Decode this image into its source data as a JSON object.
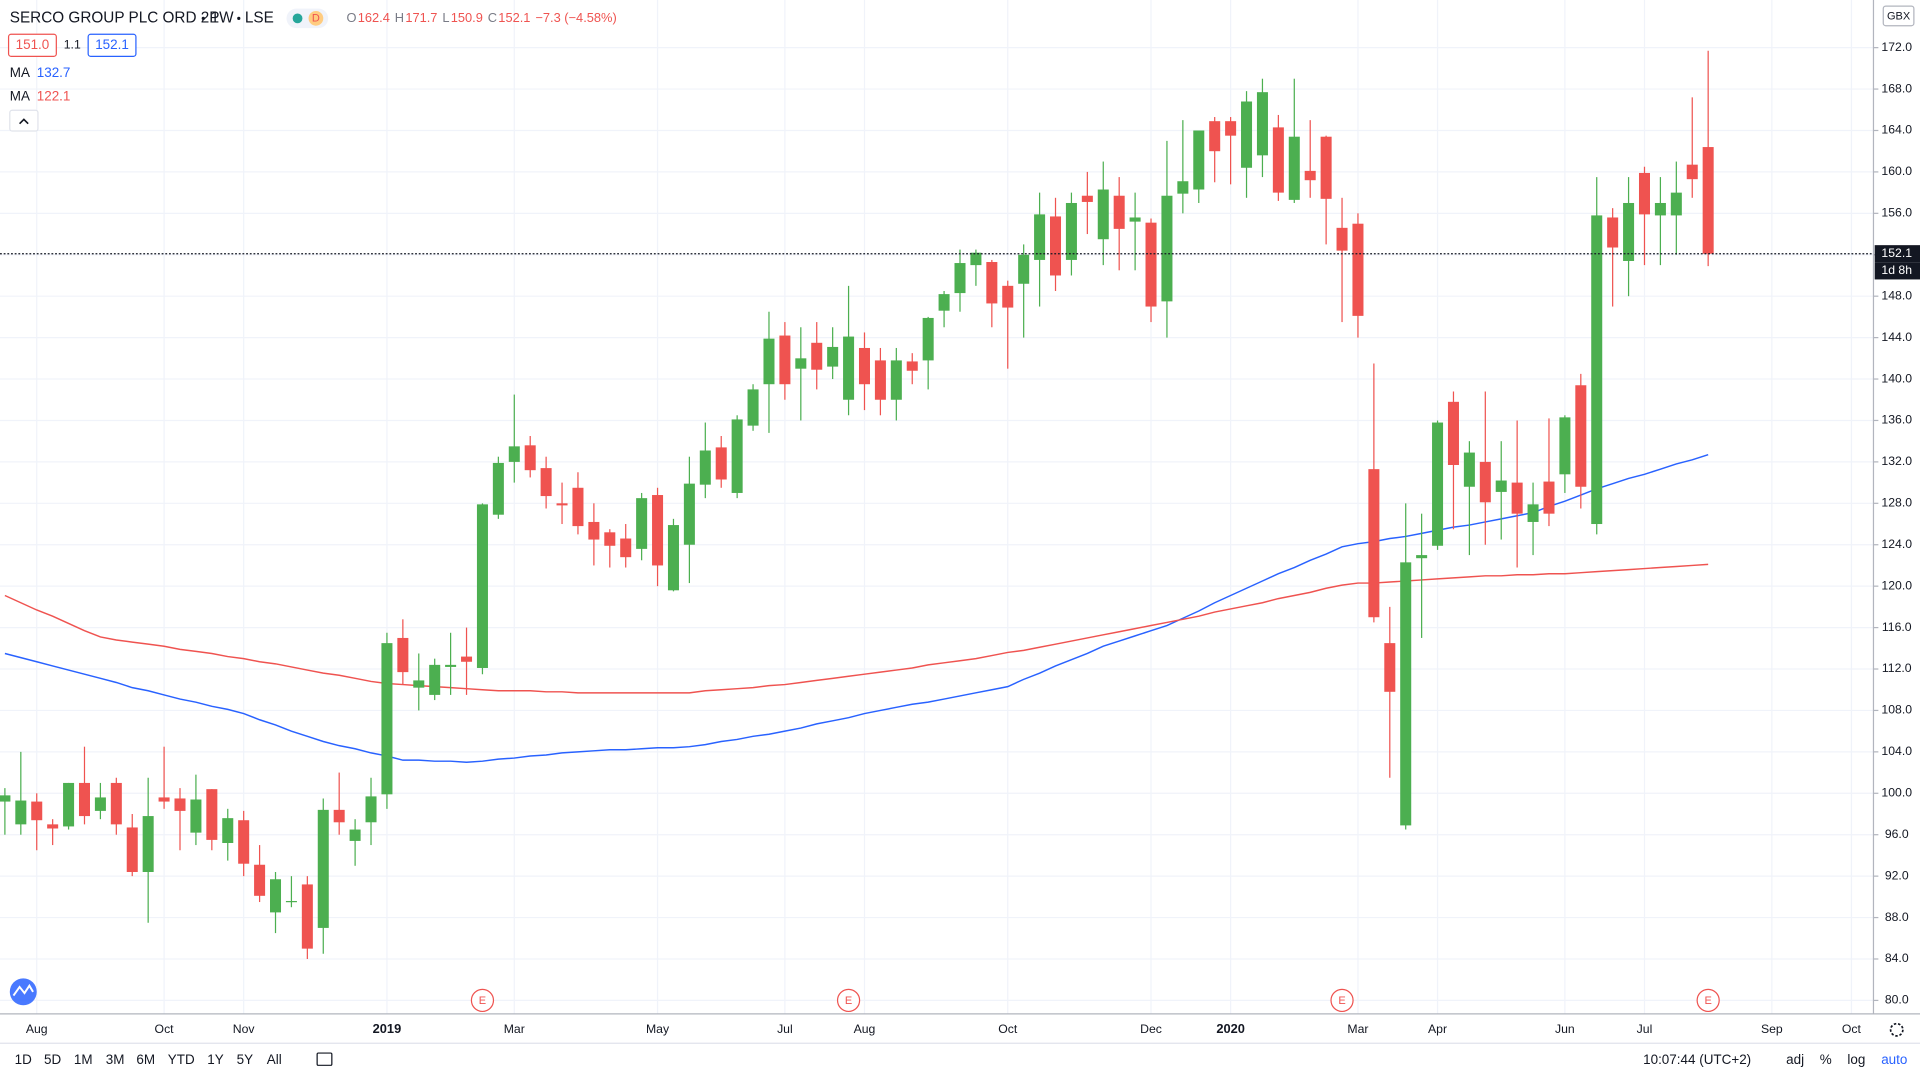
{
  "header": {
    "symbol": "SERCO GROUP PLC ORD 2P",
    "interval": "1W",
    "exchange": "LSE",
    "badge": "D",
    "ohlc": [
      {
        "label": "O",
        "value": "162.4"
      },
      {
        "label": "H",
        "value": "171.7"
      },
      {
        "label": "L",
        "value": "150.9"
      },
      {
        "label": "C",
        "value": "152.1"
      }
    ],
    "change": "−7.3 (−4.58%)",
    "bid": "151.0",
    "spread": "1.1",
    "ask": "152.1",
    "ma_values": [
      "132.7",
      "122.1"
    ]
  },
  "price_axis": {
    "currency": "GBX",
    "countdown": "1d 8h"
  },
  "toolbar": {
    "ranges": [
      "1D",
      "5D",
      "1M",
      "3M",
      "6M",
      "YTD",
      "1Y",
      "5Y",
      "All"
    ],
    "time": "10:07:44 (UTC+2)",
    "options": [
      "adj",
      "%",
      "log",
      "auto"
    ]
  },
  "chart_data": {
    "type": "candlestick",
    "up_color": "#4caf50",
    "down_color": "#ef5350",
    "grid": true,
    "categories": [
      null,
      null,
      "Aug",
      null,
      null,
      null,
      null,
      null,
      null,
      null,
      "Oct",
      null,
      null,
      null,
      null,
      "Nov",
      null,
      null,
      null,
      null,
      null,
      null,
      null,
      null,
      "2019",
      null,
      null,
      null,
      null,
      null,
      null,
      null,
      "Mar",
      null,
      null,
      null,
      null,
      null,
      null,
      null,
      null,
      "May",
      null,
      null,
      null,
      null,
      null,
      null,
      null,
      "Jul",
      null,
      null,
      null,
      null,
      "Aug",
      null,
      null,
      null,
      null,
      null,
      null,
      null,
      null,
      "Oct",
      null,
      null,
      null,
      null,
      null,
      null,
      null,
      null,
      "Dec",
      null,
      null,
      null,
      null,
      "2020",
      null,
      null,
      null,
      null,
      null,
      null,
      null,
      "Mar",
      null,
      null,
      null,
      null,
      "Apr",
      null,
      null,
      null,
      null,
      null,
      null,
      null,
      "Jun",
      null,
      null,
      null,
      null,
      "Jul",
      null,
      null,
      null,
      null,
      null,
      null,
      null,
      "Sep",
      null,
      null,
      null,
      null,
      "Oct",
      null
    ],
    "open": [
      99.2,
      97,
      99.2,
      97.0,
      96.8,
      101,
      98.3,
      101,
      96.7,
      92.4,
      99.6,
      99.5,
      96.2,
      100.4,
      95.2,
      97.4,
      93.1,
      88.5,
      89.5,
      91.2,
      87,
      98.4,
      95.4,
      97.2,
      99.9,
      115,
      110.2,
      109.5,
      112.2,
      113.2,
      112.1,
      126.9,
      132,
      133.6,
      131.4,
      128,
      129.5,
      126.2,
      125.2,
      124.6,
      123.6,
      128.8,
      119.6,
      124,
      129.8,
      133.4,
      129,
      135.5,
      139.5,
      144.2,
      141,
      143.5,
      141.2,
      138,
      143,
      141.8,
      138,
      141.7,
      141.8,
      146.6,
      148.3,
      151,
      151.3,
      149,
      149.2,
      151.5,
      155.7,
      151.5,
      157.7,
      153.5,
      157.7,
      155.2,
      155.1,
      147.5,
      157.9,
      158.3,
      164.9,
      164.9,
      160.4,
      161.6,
      164.3,
      157.3,
      160.1,
      163.4,
      154.6,
      155,
      131.3,
      114.5,
      96.9,
      122.7,
      123.9,
      137.8,
      129.6,
      132,
      129.1,
      130,
      126.2,
      130.1,
      130.8,
      139.4,
      126,
      155.6,
      151.4,
      159.9,
      155.8,
      155.8,
      160.7,
      162.4,
      null,
      null,
      null,
      null,
      null,
      null,
      null,
      null,
      null,
      null
    ],
    "high": [
      100.5,
      104,
      100,
      97.5,
      101,
      104.5,
      101,
      101.5,
      98,
      101.5,
      104.5,
      100.5,
      101.8,
      100.4,
      98.5,
      98.3,
      95,
      92.4,
      92,
      92,
      99.5,
      102,
      97.5,
      101.5,
      115.5,
      116.8,
      113.5,
      113,
      115.5,
      116,
      128,
      132.5,
      138.5,
      134.5,
      132.5,
      130,
      131,
      128,
      125.5,
      126,
      129,
      129.5,
      126.5,
      132.5,
      135.8,
      134.5,
      136.5,
      139.5,
      146.5,
      145.5,
      145,
      145.5,
      145,
      149,
      144.5,
      143,
      143,
      142.5,
      146,
      148.5,
      152.5,
      152.5,
      151.5,
      149.5,
      153,
      158,
      157.5,
      158,
      160,
      161,
      159.5,
      158,
      155.5,
      163,
      165,
      164,
      165.3,
      165.3,
      167.8,
      169,
      165.5,
      169,
      165,
      163.5,
      157.5,
      156,
      141.5,
      118,
      128,
      127,
      136,
      138.8,
      134,
      138.8,
      134,
      136,
      130,
      136.2,
      136.5,
      140.5,
      159.5,
      156.5,
      159.5,
      160.5,
      159.5,
      161,
      167.2,
      171.7,
      null,
      null,
      null,
      null,
      null,
      null,
      null,
      null,
      null,
      null
    ],
    "low": [
      96,
      96,
      94.5,
      95,
      96.5,
      97,
      97.5,
      96,
      92,
      87.5,
      98.5,
      94.5,
      95,
      94.5,
      93.5,
      92,
      89.5,
      86.5,
      89,
      84,
      84.5,
      96,
      93,
      95,
      98.5,
      110.5,
      108,
      109,
      109.5,
      109.5,
      111.5,
      126.5,
      130,
      130.5,
      127.5,
      126,
      125,
      122,
      121.8,
      121.8,
      122.5,
      120,
      119.5,
      120.3,
      128.5,
      129.5,
      128.5,
      135,
      134.8,
      138,
      136,
      139,
      140,
      136.5,
      137,
      136.5,
      136,
      139.5,
      139,
      145,
      146.5,
      149,
      145,
      141,
      144,
      147,
      148.5,
      150,
      154,
      151,
      150.5,
      150.5,
      145.5,
      144,
      156,
      157,
      159,
      158.8,
      157.5,
      159.5,
      157.2,
      157,
      157.5,
      153,
      145.5,
      144,
      116.5,
      101.5,
      96.5,
      115,
      123.5,
      125.5,
      123,
      124,
      124.5,
      121.8,
      123,
      125.8,
      129,
      127.5,
      125,
      147,
      148,
      151,
      151,
      152,
      157.5,
      150.9,
      null,
      null,
      null,
      null,
      null,
      null,
      null,
      null,
      null,
      null
    ],
    "close": [
      99.8,
      99.3,
      97.4,
      96.6,
      101,
      97.8,
      99.6,
      97,
      92.4,
      97.8,
      99.2,
      98.3,
      99.4,
      95.5,
      97.6,
      93.2,
      90.1,
      91.7,
      89.6,
      85,
      98.4,
      97.2,
      96.5,
      99.7,
      114.5,
      111.7,
      110.9,
      112.4,
      112.4,
      112.7,
      127.9,
      131.9,
      133.5,
      131.2,
      128.7,
      127.8,
      125.8,
      124.5,
      123.9,
      122.8,
      128.5,
      122,
      125.9,
      129.9,
      133.1,
      130.3,
      136.1,
      139,
      143.9,
      139.5,
      142,
      140.9,
      143.1,
      144.1,
      139.5,
      138,
      141.8,
      140.8,
      145.9,
      148.2,
      151.2,
      152.2,
      147.3,
      146.9,
      152,
      155.9,
      150,
      157,
      157.1,
      158.3,
      154.5,
      155.6,
      147,
      157.7,
      159.1,
      164,
      162,
      163.5,
      166.8,
      167.7,
      158,
      163.4,
      159.2,
      157.4,
      152.4,
      146.1,
      117,
      109.8,
      122.3,
      123,
      135.8,
      131.7,
      132.9,
      128.1,
      130.2,
      127,
      127.9,
      127,
      136.3,
      129.6,
      155.8,
      152.7,
      157,
      155.9,
      157,
      158,
      159.3,
      152.1,
      null,
      null,
      null,
      null,
      null,
      null,
      null,
      null,
      null,
      null
    ],
    "series": [
      {
        "name": "MA",
        "color": "#2962ff",
        "values": [
          113.5,
          113.1,
          112.7,
          112.3,
          111.9,
          111.5,
          111.1,
          110.7,
          110.2,
          109.9,
          109.5,
          109.1,
          108.8,
          108.4,
          108.1,
          107.7,
          107.1,
          106.6,
          106.0,
          105.5,
          105.0,
          104.6,
          104.3,
          103.9,
          103.6,
          103.2,
          103.2,
          103.1,
          103.1,
          103.0,
          103.1,
          103.3,
          103.4,
          103.6,
          103.7,
          103.9,
          104.0,
          104.1,
          104.2,
          104.2,
          104.3,
          104.4,
          104.4,
          104.5,
          104.7,
          105.0,
          105.2,
          105.5,
          105.7,
          106.0,
          106.3,
          106.7,
          107.0,
          107.3,
          107.7,
          108.0,
          108.3,
          108.6,
          108.8,
          109.1,
          109.4,
          109.7,
          110.0,
          110.3,
          111.0,
          111.6,
          112.3,
          112.9,
          113.5,
          114.2,
          114.7,
          115.2,
          115.7,
          116.2,
          116.9,
          117.6,
          118.4,
          119.1,
          119.8,
          120.5,
          121.2,
          121.8,
          122.5,
          123.1,
          123.8,
          124.1,
          124.3,
          124.6,
          124.8,
          125.1,
          125.4,
          125.7,
          125.9,
          126.2,
          126.5,
          126.8,
          127.1,
          127.7,
          128.2,
          128.8,
          129.4,
          129.9,
          130.4,
          130.8,
          131.3,
          131.8,
          132.2,
          132.7,
          null,
          null,
          null,
          null,
          null,
          null,
          null,
          null,
          null,
          null
        ]
      },
      {
        "name": "MA",
        "color": "#ef5350",
        "values": [
          119.1,
          118.4,
          117.7,
          117.1,
          116.4,
          115.7,
          115.1,
          114.8,
          114.6,
          114.4,
          114.2,
          113.9,
          113.7,
          113.5,
          113.2,
          113.0,
          112.7,
          112.5,
          112.2,
          111.9,
          111.6,
          111.4,
          111.1,
          110.8,
          110.6,
          110.5,
          110.4,
          110.3,
          110.2,
          110.1,
          110.0,
          109.9,
          109.9,
          109.9,
          109.8,
          109.8,
          109.7,
          109.7,
          109.7,
          109.7,
          109.7,
          109.7,
          109.7,
          109.7,
          109.9,
          110.0,
          110.1,
          110.2,
          110.4,
          110.5,
          110.7,
          110.9,
          111.1,
          111.3,
          111.5,
          111.7,
          111.9,
          112.1,
          112.4,
          112.6,
          112.8,
          113.0,
          113.3,
          113.6,
          113.8,
          114.1,
          114.4,
          114.7,
          115.0,
          115.3,
          115.6,
          115.9,
          116.2,
          116.5,
          116.8,
          117.1,
          117.5,
          117.8,
          118.1,
          118.4,
          118.8,
          119.1,
          119.4,
          119.8,
          120.1,
          120.3,
          120.3,
          120.4,
          120.5,
          120.6,
          120.7,
          120.8,
          120.9,
          121.0,
          121.0,
          121.1,
          121.1,
          121.2,
          121.2,
          121.3,
          121.4,
          121.5,
          121.6,
          121.7,
          121.8,
          121.9,
          122.0,
          122.1,
          null,
          null,
          null,
          null,
          null,
          null,
          null,
          null,
          null,
          null
        ]
      }
    ],
    "earnings": [
      null,
      null,
      null,
      null,
      null,
      null,
      null,
      null,
      null,
      null,
      null,
      null,
      null,
      null,
      null,
      null,
      null,
      null,
      null,
      null,
      null,
      null,
      null,
      null,
      null,
      null,
      null,
      null,
      null,
      null,
      "E",
      null,
      null,
      null,
      null,
      null,
      null,
      null,
      null,
      null,
      null,
      null,
      null,
      null,
      null,
      null,
      null,
      null,
      null,
      null,
      null,
      null,
      null,
      "E",
      null,
      null,
      null,
      null,
      null,
      null,
      null,
      null,
      null,
      null,
      null,
      null,
      null,
      null,
      null,
      null,
      null,
      null,
      null,
      null,
      null,
      null,
      null,
      null,
      null,
      null,
      null,
      null,
      null,
      null,
      "E",
      null,
      null,
      null,
      null,
      null,
      null,
      null,
      null,
      null,
      null,
      null,
      null,
      null,
      null,
      null,
      null,
      null,
      null,
      null,
      null,
      null,
      null,
      "E",
      null,
      null,
      null,
      null,
      null,
      null,
      null,
      null,
      null,
      null
    ],
    "last_price": {
      "value": 152.1,
      "label": "152.1"
    },
    "ylim": [
      78.7,
      176.6
    ],
    "yticks": [
      {
        "value": 80,
        "label": "80.0"
      },
      {
        "value": 84,
        "label": "84.0"
      },
      {
        "value": 88,
        "label": "88.0"
      },
      {
        "value": 92,
        "label": "92.0"
      },
      {
        "value": 96,
        "label": "96.0"
      },
      {
        "value": 100,
        "label": "100.0"
      },
      {
        "value": 104,
        "label": "104.0"
      },
      {
        "value": 108,
        "label": "108.0"
      },
      {
        "value": 112,
        "label": "112.0"
      },
      {
        "value": 116,
        "label": "116.0"
      },
      {
        "value": 120,
        "label": "120.0"
      },
      {
        "value": 124,
        "label": "124.0"
      },
      {
        "value": 128,
        "label": "128.0"
      },
      {
        "value": 132,
        "label": "132.0"
      },
      {
        "value": 136,
        "label": "136.0"
      },
      {
        "value": 140,
        "label": "140.0"
      },
      {
        "value": 144,
        "label": "144.0"
      },
      {
        "value": 148,
        "label": "148.0"
      },
      {
        "value": 152,
        "label": "152.0"
      },
      {
        "value": 156,
        "label": "156.0"
      },
      {
        "value": 160,
        "label": "160.0"
      },
      {
        "value": 164,
        "label": "164.0"
      },
      {
        "value": 168,
        "label": "168.0"
      },
      {
        "value": 172,
        "label": "172.0"
      }
    ]
  }
}
